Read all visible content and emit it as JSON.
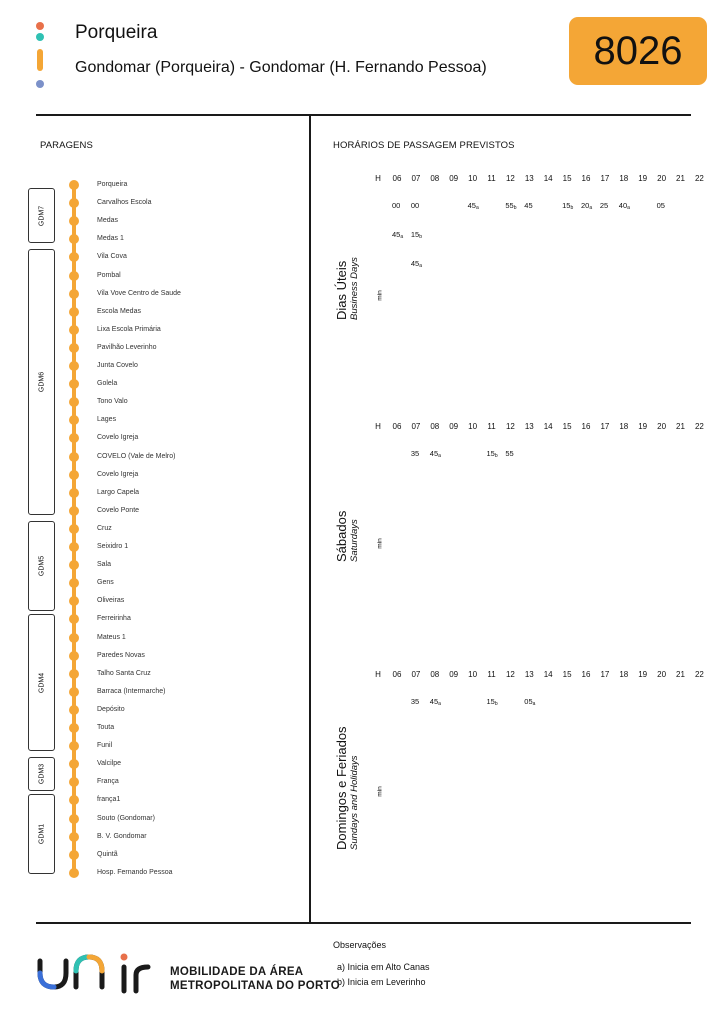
{
  "header": {
    "route_name": "Porqueira",
    "route_description": "Gondomar (Porqueira) - Gondomar (H. Fernando Pessoa)",
    "route_number": "8026"
  },
  "colors": {
    "accent": "#f4a636",
    "icon_dots": [
      "#e8704a",
      "#2fc1b3",
      "#f4a636",
      "#7c91c9"
    ]
  },
  "stops_section": {
    "title": "PARAGENS",
    "zones": [
      "GDM7",
      "GDM6",
      "GDM5",
      "GDM4",
      "GDM3",
      "GDM1"
    ],
    "stops": [
      "Porqueira",
      "Carvalhos Escola",
      "Medas",
      "Medas 1",
      "Vila Cova",
      "Pombal",
      "Vila Vove Centro de Saude",
      "Escola Medas",
      "Lixa Escola Primária",
      "Pavilhão Leverinho",
      "Junta Covelo",
      "Golela",
      "Tono Valo",
      "Lages",
      "Covelo Igreja",
      "COVELO (Vale de Melro)",
      "Covelo Igreja",
      "Largo Capela",
      "Covelo Ponte",
      "Cruz",
      "Seixidro 1",
      "Sala",
      "Gens",
      "Oliveiras",
      "Ferreirinha",
      "Mateus 1",
      "Paredes Novas",
      "Talho Santa Cruz",
      "Barraca (Intermarche)",
      "Depósito",
      "Touta",
      "Funil",
      "Valcilpe",
      "França",
      "frança1",
      "Souto (Gondomar)",
      "B. V. Gondomar",
      "Quintã",
      "Hosp. Fernando Pessoa"
    ]
  },
  "schedule_section": {
    "title": "HORÁRIOS DE PASSAGEM PREVISTOS",
    "hour_label": "H",
    "minutes_label": "min",
    "hours": [
      "06",
      "07",
      "08",
      "09",
      "10",
      "11",
      "12",
      "13",
      "14",
      "15",
      "16",
      "17",
      "18",
      "19",
      "20",
      "21",
      "22"
    ],
    "tables": [
      {
        "title_pt": "Dias Úteis",
        "title_en": "Business Days",
        "rows": [
          [
            {
              "h": "06",
              "m": "00",
              "n": ""
            },
            {
              "h": "07",
              "m": "00",
              "n": ""
            },
            {
              "h": "10",
              "m": "45",
              "n": "a"
            },
            {
              "h": "12",
              "m": "55",
              "n": "b"
            },
            {
              "h": "13",
              "m": "45",
              "n": ""
            },
            {
              "h": "15",
              "m": "15",
              "n": "b"
            },
            {
              "h": "16",
              "m": "20",
              "n": "a"
            },
            {
              "h": "17",
              "m": "25",
              "n": ""
            },
            {
              "h": "18",
              "m": "40",
              "n": "a"
            },
            {
              "h": "20",
              "m": "05",
              "n": ""
            }
          ],
          [
            {
              "h": "06",
              "m": "45",
              "n": "a"
            },
            {
              "h": "07",
              "m": "15",
              "n": "b"
            }
          ],
          [
            {
              "h": "07",
              "m": "45",
              "n": "a"
            }
          ]
        ]
      },
      {
        "title_pt": "Sábados",
        "title_en": "Saturdays",
        "rows": [
          [
            {
              "h": "07",
              "m": "35",
              "n": ""
            },
            {
              "h": "08",
              "m": "45",
              "n": "a"
            },
            {
              "h": "11",
              "m": "15",
              "n": "b"
            },
            {
              "h": "12",
              "m": "55",
              "n": ""
            }
          ]
        ]
      },
      {
        "title_pt": "Domingos e Feriados",
        "title_en": "Sundays and Holidays",
        "rows": [
          [
            {
              "h": "07",
              "m": "35",
              "n": ""
            },
            {
              "h": "08",
              "m": "45",
              "n": "a"
            },
            {
              "h": "11",
              "m": "15",
              "n": "b"
            },
            {
              "h": "13",
              "m": "05",
              "n": "a"
            }
          ]
        ]
      }
    ]
  },
  "observations": {
    "title": "Observações",
    "notes": [
      "a) Inicia em Alto Canas",
      "b) Inicia em Leverinho"
    ]
  },
  "footer": {
    "logo_line1": "MOBILIDADE DA ÁREA",
    "logo_line2": "METROPOLITANA DO PORTO"
  }
}
